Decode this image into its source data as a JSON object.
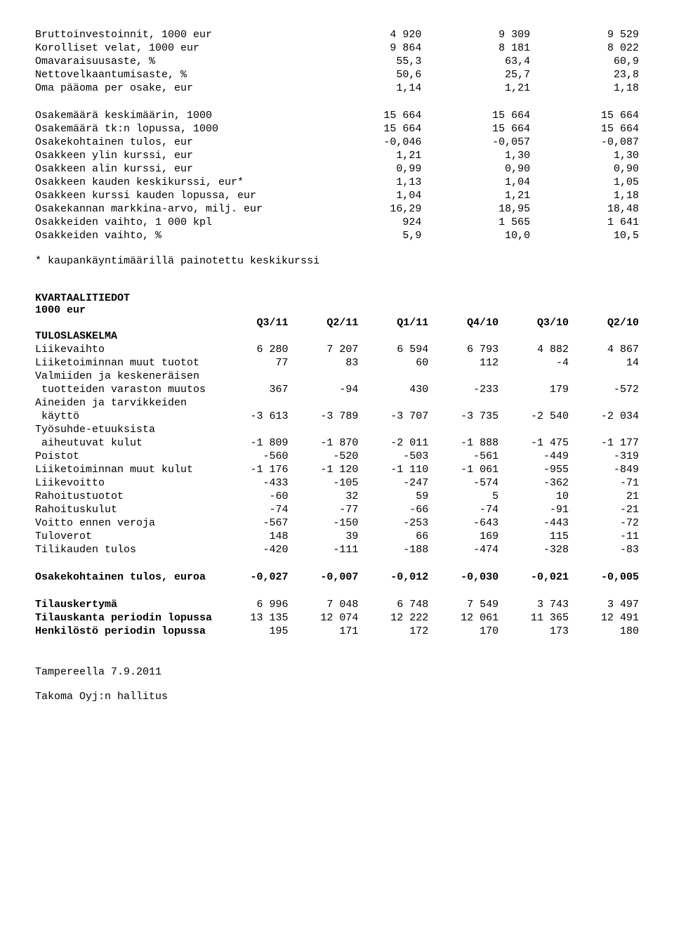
{
  "table1": {
    "rows": [
      {
        "label": "Bruttoinvestoinnit, 1000 eur",
        "v": [
          "4 920",
          "9 309",
          "9 529"
        ]
      },
      {
        "label": "Korolliset velat, 1000 eur",
        "v": [
          "9 864",
          "8 181",
          "8 022"
        ]
      },
      {
        "label": "Omavaraisuusaste, %",
        "v": [
          "55,3",
          "63,4",
          "60,9"
        ]
      },
      {
        "label": "Nettovelkaantumisaste, %",
        "v": [
          "50,6",
          "25,7",
          "23,8"
        ]
      },
      {
        "label": "Oma pääoma per osake, eur",
        "v": [
          "1,14",
          "1,21",
          "1,18"
        ]
      }
    ],
    "rows2": [
      {
        "label": "Osakemäärä keskimäärin, 1000",
        "v": [
          "15 664",
          "15 664",
          "15 664"
        ]
      },
      {
        "label": "Osakemäärä tk:n lopussa, 1000",
        "v": [
          "15 664",
          "15 664",
          "15 664"
        ]
      },
      {
        "label": "Osakekohtainen tulos, eur",
        "v": [
          "-0,046",
          "-0,057",
          "-0,087"
        ]
      },
      {
        "label": "Osakkeen ylin kurssi, eur",
        "v": [
          "1,21",
          "1,30",
          "1,30"
        ]
      },
      {
        "label": "Osakkeen alin kurssi, eur",
        "v": [
          "0,99",
          "0,90",
          "0,90"
        ]
      },
      {
        "label": "Osakkeen kauden keskikurssi, eur*",
        "v": [
          "1,13",
          "1,04",
          "1,05"
        ]
      },
      {
        "label": "Osakkeen kurssi kauden lopussa, eur",
        "v": [
          "1,04",
          "1,21",
          "1,18"
        ]
      },
      {
        "label": "Osakekannan markkina-arvo, milj. eur",
        "v": [
          "16,29",
          "18,95",
          "18,48"
        ]
      },
      {
        "label": "Osakkeiden vaihto, 1 000 kpl",
        "v": [
          "924",
          "1 565",
          "1 641"
        ]
      },
      {
        "label": "Osakkeiden vaihto, %",
        "v": [
          "5,9",
          "10,0",
          "10,5"
        ]
      }
    ],
    "footnote": "* kaupankäyntimäärillä painotettu keskikurssi"
  },
  "table2": {
    "title": "KVARTAALITIEDOT",
    "subtitle": "1000 eur",
    "headers": [
      "Q3/11",
      "Q2/11",
      "Q1/11",
      "Q4/10",
      "Q3/10",
      "Q2/10"
    ],
    "section1_title": "TULOSLASKELMA",
    "rows": [
      {
        "label": "Liikevaihto",
        "v": [
          "6 280",
          "7 207",
          "6 594",
          "6 793",
          "4 882",
          "4 867"
        ]
      },
      {
        "label": "Liiketoiminnan muut tuotot",
        "v": [
          "77",
          "83",
          "60",
          "112",
          "-4",
          "14"
        ]
      },
      {
        "label": "Valmiiden ja keskeneräisen",
        "sub": "tuotteiden varaston muutos",
        "v": [
          "367",
          "-94",
          "430",
          "-233",
          "179",
          "-572"
        ]
      },
      {
        "label": "Aineiden ja tarvikkeiden",
        "sub": "käyttö",
        "v": [
          "-3 613",
          "-3 789",
          "-3 707",
          "-3 735",
          "-2 540",
          "-2 034"
        ]
      },
      {
        "label": "Työsuhde-etuuksista",
        "sub": "aiheutuvat kulut",
        "v": [
          "-1 809",
          "-1 870",
          "-2 011",
          "-1 888",
          "-1 475",
          "-1 177"
        ]
      },
      {
        "label": "Poistot",
        "v": [
          "-560",
          "-520",
          "-503",
          "-561",
          "-449",
          "-319"
        ]
      },
      {
        "label": "Liiketoiminnan muut kulut",
        "v": [
          "-1 176",
          "-1 120",
          "-1 110",
          "-1 061",
          "-955",
          "-849"
        ]
      },
      {
        "label": "Liikevoitto",
        "v": [
          "-433",
          "-105",
          "-247",
          "-574",
          "-362",
          "-71"
        ]
      },
      {
        "label": "Rahoitustuotot",
        "v": [
          "-60",
          "32",
          "59",
          "5",
          "10",
          "21"
        ]
      },
      {
        "label": "Rahoituskulut",
        "v": [
          "-74",
          "-77",
          "-66",
          "-74",
          "-91",
          "-21"
        ]
      },
      {
        "label": "Voitto ennen veroja",
        "v": [
          "-567",
          "-150",
          "-253",
          "-643",
          "-443",
          "-72"
        ]
      },
      {
        "label": "Tuloverot",
        "v": [
          "148",
          "39",
          "66",
          "169",
          "115",
          "-11"
        ]
      },
      {
        "label": "Tilikauden tulos",
        "v": [
          "-420",
          "-111",
          "-188",
          "-474",
          "-328",
          "-83"
        ]
      }
    ],
    "eps": {
      "label": "Osakekohtainen tulos, euroa",
      "v": [
        "-0,027",
        "-0,007",
        "-0,012",
        "-0,030",
        "-0,021",
        "-0,005"
      ]
    },
    "bottom": [
      {
        "label": "Tilauskertymä",
        "v": [
          "6 996",
          "7 048",
          "6 748",
          "7 549",
          "3 743",
          "3 497"
        ]
      },
      {
        "label": "Tilauskanta periodin lopussa",
        "v": [
          "13 135",
          "12 074",
          "12 222",
          "12 061",
          "11 365",
          "12 491"
        ]
      },
      {
        "label": "Henkilöstö periodin lopussa",
        "v": [
          "195",
          "171",
          "172",
          "170",
          "173",
          "180"
        ]
      }
    ]
  },
  "footer": {
    "place_date": "Tampereella 7.9.2011",
    "org": "Takoma Oyj:n hallitus"
  }
}
